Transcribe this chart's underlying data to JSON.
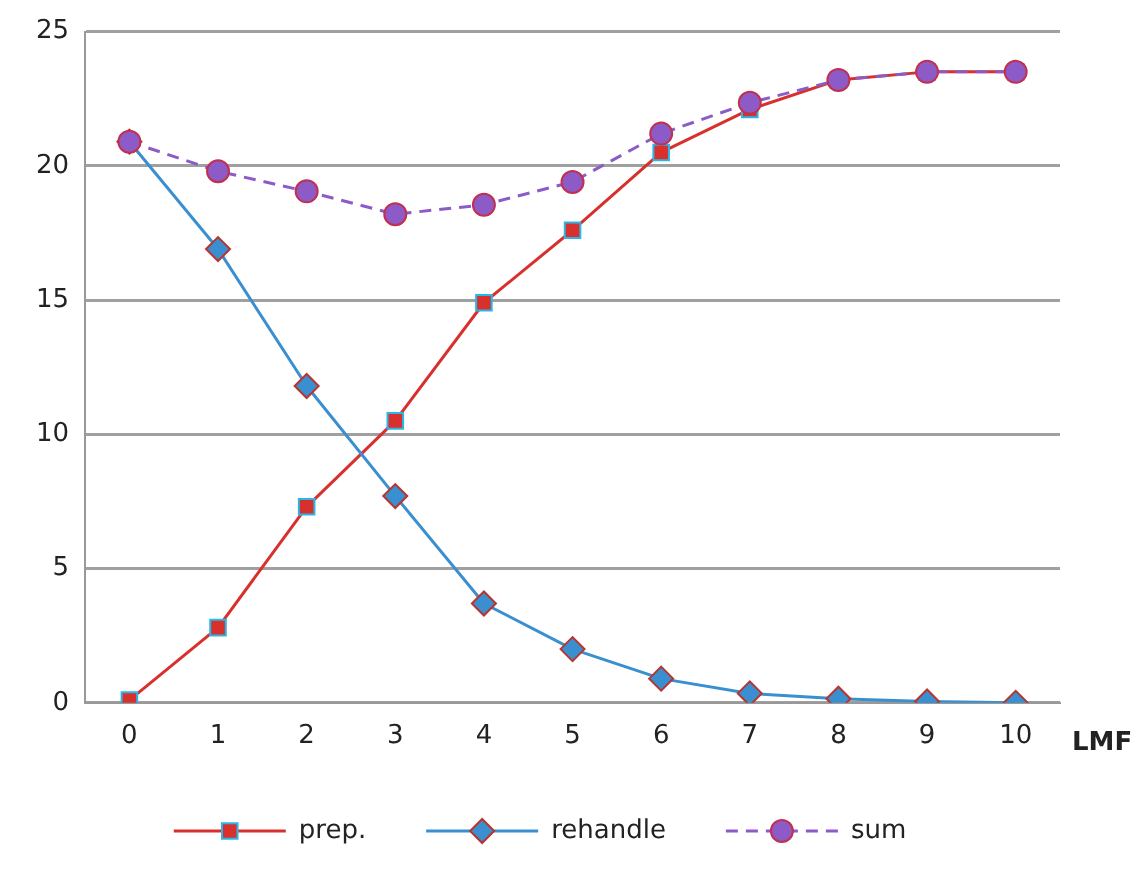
{
  "chart_data": {
    "type": "line",
    "xlabel": "LMF",
    "categories": [
      "0",
      "1",
      "2",
      "3",
      "4",
      "5",
      "6",
      "7",
      "8",
      "9",
      "10"
    ],
    "series": [
      {
        "name": "prep.",
        "color": "#d8302c",
        "marker": "square",
        "line_style": "solid",
        "values": [
          0.1,
          2.8,
          7.3,
          10.5,
          14.9,
          17.6,
          20.5,
          22.1,
          23.2,
          23.5,
          23.5
        ]
      },
      {
        "name": "rehandle",
        "color": "#3a8fd0",
        "marker": "diamond",
        "line_style": "solid",
        "values": [
          20.9,
          16.9,
          11.8,
          7.7,
          3.7,
          2.0,
          0.9,
          0.35,
          0.15,
          0.05,
          0
        ]
      },
      {
        "name": "sum",
        "color": "#8c5bc7",
        "marker": "circle",
        "line_style": "dashed",
        "values": [
          20.9,
          19.8,
          19.05,
          18.2,
          18.55,
          19.4,
          21.2,
          22.35,
          23.2,
          23.5,
          23.5
        ]
      }
    ],
    "ylim": [
      0,
      25
    ],
    "yticks": [
      0,
      5,
      10,
      15,
      20,
      25
    ],
    "grid": "y",
    "legend": "bottom"
  }
}
